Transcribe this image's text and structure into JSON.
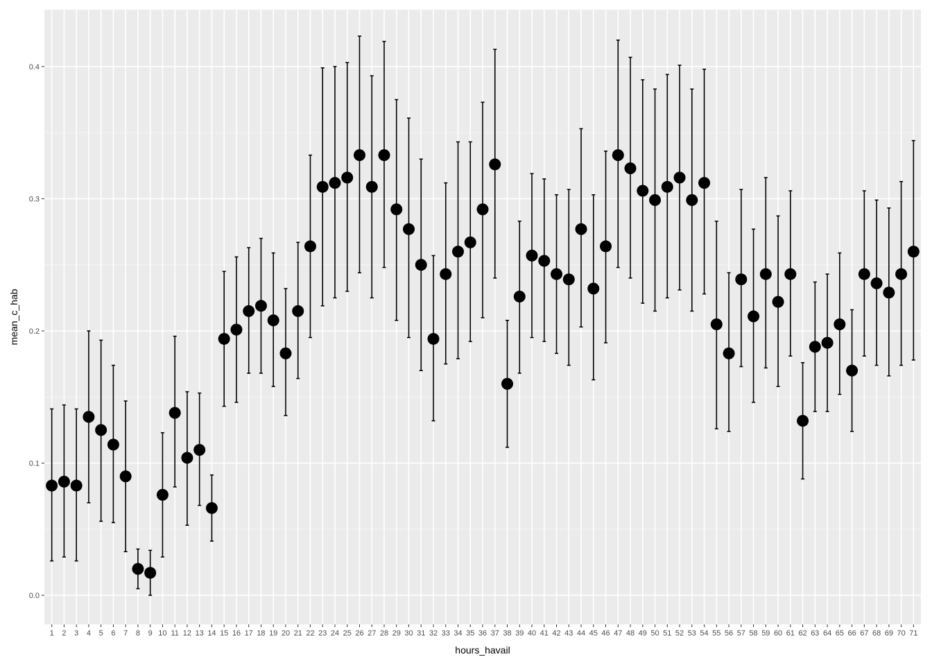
{
  "chart_data": {
    "type": "scatter",
    "subtype": "point-with-errorbars",
    "title": "",
    "xlabel": "hours_havail",
    "ylabel": "mean_c_hab",
    "ylim": [
      -0.022,
      0.443
    ],
    "yticks": [
      0.0,
      0.1,
      0.2,
      0.3,
      0.4
    ],
    "ytick_labels": [
      "0.0",
      "0.1",
      "0.2",
      "0.3",
      "0.4"
    ],
    "grid": true,
    "legend": "none",
    "colors": {
      "panel_bg": "#ebebeb",
      "grid_major": "#ffffff",
      "grid_minor": "#f5f5f5",
      "point": "#000000"
    },
    "x": [
      1,
      2,
      3,
      4,
      5,
      6,
      7,
      8,
      9,
      10,
      11,
      12,
      13,
      14,
      15,
      16,
      17,
      18,
      19,
      20,
      21,
      22,
      23,
      24,
      25,
      26,
      27,
      28,
      29,
      30,
      31,
      32,
      33,
      34,
      35,
      36,
      37,
      38,
      39,
      40,
      41,
      42,
      43,
      44,
      45,
      46,
      47,
      48,
      49,
      50,
      51,
      52,
      53,
      54,
      55,
      56,
      57,
      58,
      59,
      60,
      61,
      62,
      63,
      64,
      65,
      66,
      67,
      68,
      69,
      70,
      71
    ],
    "y": [
      0.083,
      0.086,
      0.083,
      0.135,
      0.125,
      0.114,
      0.09,
      0.02,
      0.017,
      0.076,
      0.138,
      0.104,
      0.11,
      0.066,
      0.194,
      0.201,
      0.215,
      0.219,
      0.208,
      0.183,
      0.215,
      0.264,
      0.309,
      0.312,
      0.316,
      0.333,
      0.309,
      0.333,
      0.292,
      0.277,
      0.25,
      0.194,
      0.243,
      0.26,
      0.267,
      0.292,
      0.326,
      0.16,
      0.226,
      0.257,
      0.253,
      0.243,
      0.239,
      0.277,
      0.232,
      0.264,
      0.333,
      0.323,
      0.306,
      0.299,
      0.309,
      0.316,
      0.299,
      0.312,
      0.205,
      0.183,
      0.239,
      0.211,
      0.243,
      0.222,
      0.243,
      0.132,
      0.188,
      0.191,
      0.205,
      0.17,
      0.243,
      0.236,
      0.229,
      0.243,
      0.26
    ],
    "ymin": [
      0.026,
      0.029,
      0.026,
      0.07,
      0.056,
      0.055,
      0.033,
      0.005,
      0.0,
      0.029,
      0.082,
      0.053,
      0.068,
      0.041,
      0.143,
      0.146,
      0.168,
      0.168,
      0.158,
      0.136,
      0.164,
      0.195,
      0.219,
      0.225,
      0.23,
      0.244,
      0.225,
      0.248,
      0.208,
      0.195,
      0.17,
      0.132,
      0.175,
      0.179,
      0.192,
      0.21,
      0.24,
      0.112,
      0.168,
      0.195,
      0.192,
      0.183,
      0.174,
      0.203,
      0.163,
      0.191,
      0.248,
      0.24,
      0.221,
      0.215,
      0.225,
      0.231,
      0.215,
      0.228,
      0.126,
      0.124,
      0.173,
      0.146,
      0.172,
      0.158,
      0.181,
      0.088,
      0.139,
      0.139,
      0.152,
      0.124,
      0.181,
      0.174,
      0.166,
      0.174,
      0.178
    ],
    "ymax": [
      0.141,
      0.144,
      0.141,
      0.2,
      0.193,
      0.174,
      0.147,
      0.035,
      0.034,
      0.123,
      0.196,
      0.154,
      0.153,
      0.091,
      0.245,
      0.256,
      0.263,
      0.27,
      0.259,
      0.232,
      0.267,
      0.333,
      0.399,
      0.4,
      0.403,
      0.423,
      0.393,
      0.419,
      0.375,
      0.361,
      0.33,
      0.257,
      0.312,
      0.343,
      0.343,
      0.373,
      0.413,
      0.208,
      0.283,
      0.319,
      0.315,
      0.303,
      0.307,
      0.353,
      0.303,
      0.336,
      0.42,
      0.407,
      0.39,
      0.383,
      0.394,
      0.401,
      0.383,
      0.398,
      0.283,
      0.244,
      0.307,
      0.277,
      0.316,
      0.287,
      0.306,
      0.176,
      0.237,
      0.243,
      0.259,
      0.216,
      0.306,
      0.299,
      0.293,
      0.313,
      0.344
    ]
  }
}
